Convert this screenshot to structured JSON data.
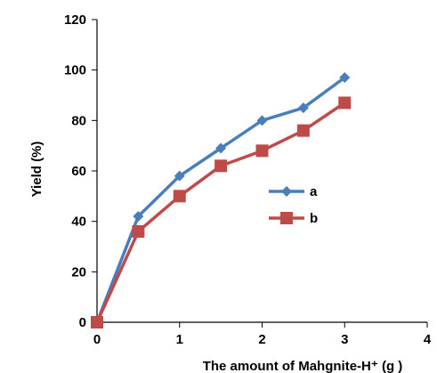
{
  "chart_data": {
    "type": "line",
    "xlabel": "The amount of Mahgnite-H⁺ (g )",
    "ylabel": "Yield (%)",
    "xlim": [
      0,
      4
    ],
    "ylim": [
      0,
      120
    ],
    "xticks": [
      0,
      1,
      2,
      3,
      4
    ],
    "yticks": [
      0,
      20,
      40,
      60,
      80,
      100,
      120
    ],
    "grid": false,
    "legend_position": "center-right",
    "series": [
      {
        "name": "a",
        "color": "#4a7ebb",
        "marker": "diamond",
        "x": [
          0,
          0.5,
          1,
          1.5,
          2,
          2.5,
          3
        ],
        "y": [
          0,
          42,
          58,
          69,
          80,
          85,
          97
        ]
      },
      {
        "name": "b",
        "color": "#be4b48",
        "marker": "square",
        "x": [
          0,
          0.5,
          1,
          1.5,
          2,
          2.5,
          3
        ],
        "y": [
          0,
          36,
          50,
          62,
          68,
          76,
          87
        ]
      }
    ]
  }
}
